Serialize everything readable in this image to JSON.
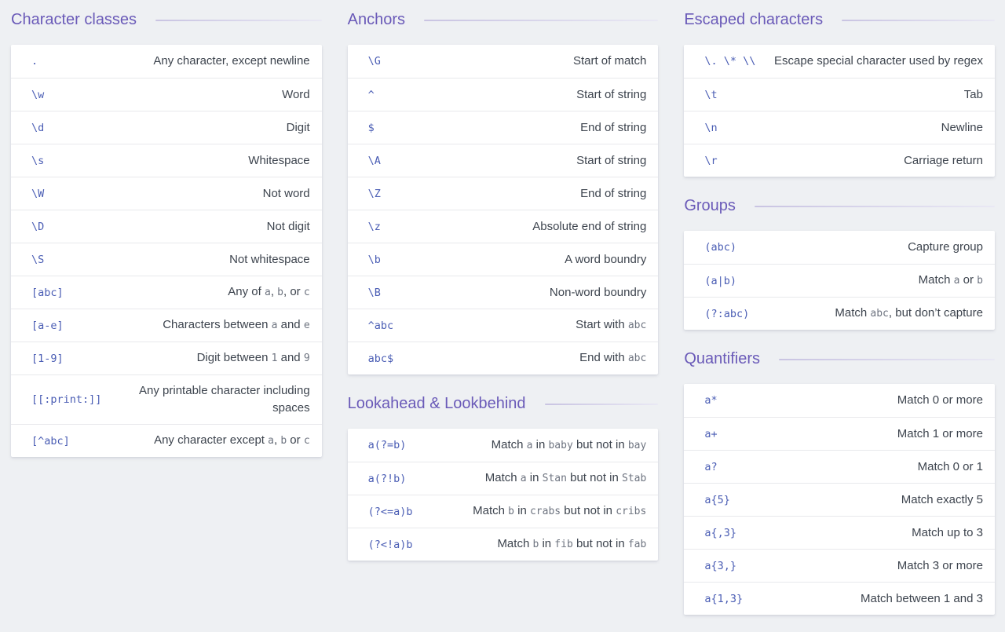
{
  "theme": {
    "page_bg": "#eef0f3",
    "card_bg": "#ffffff",
    "heading_color": "#6a5ab8",
    "rule_color_left": "#c9c4e2",
    "rule_color_right": "#e9e8f4",
    "code_color": "#4a5db4",
    "text_color": "#3d444e",
    "inline_code_color": "#6e7480",
    "divider_color": "#e8e9ec"
  },
  "columns": [
    {
      "sections": [
        {
          "title": "Character classes",
          "rows": [
            {
              "code": ".",
              "desc": [
                {
                  "t": "Any character, except newline"
                }
              ]
            },
            {
              "code": "\\w",
              "desc": [
                {
                  "t": "Word"
                }
              ]
            },
            {
              "code": "\\d",
              "desc": [
                {
                  "t": "Digit"
                }
              ]
            },
            {
              "code": "\\s",
              "desc": [
                {
                  "t": "Whitespace"
                }
              ]
            },
            {
              "code": "\\W",
              "desc": [
                {
                  "t": "Not word"
                }
              ]
            },
            {
              "code": "\\D",
              "desc": [
                {
                  "t": "Not digit"
                }
              ]
            },
            {
              "code": "\\S",
              "desc": [
                {
                  "t": "Not whitespace"
                }
              ]
            },
            {
              "code": "[abc]",
              "desc": [
                {
                  "t": "Any of "
                },
                {
                  "c": "a"
                },
                {
                  "t": ", "
                },
                {
                  "c": "b"
                },
                {
                  "t": ", or "
                },
                {
                  "c": "c"
                }
              ]
            },
            {
              "code": "[a-e]",
              "desc": [
                {
                  "t": "Characters between "
                },
                {
                  "c": "a"
                },
                {
                  "t": " and "
                },
                {
                  "c": "e"
                }
              ]
            },
            {
              "code": "[1-9]",
              "desc": [
                {
                  "t": "Digit between "
                },
                {
                  "c": "1"
                },
                {
                  "t": " and "
                },
                {
                  "c": "9"
                }
              ]
            },
            {
              "code": "[[:print:]]",
              "desc": [
                {
                  "t": "Any printable character including spaces"
                }
              ]
            },
            {
              "code": "[^abc]",
              "desc": [
                {
                  "t": "Any character except "
                },
                {
                  "c": "a"
                },
                {
                  "t": ", "
                },
                {
                  "c": "b"
                },
                {
                  "t": " or "
                },
                {
                  "c": "c"
                }
              ]
            }
          ]
        }
      ]
    },
    {
      "sections": [
        {
          "title": "Anchors",
          "rows": [
            {
              "code": "\\G",
              "desc": [
                {
                  "t": "Start of match"
                }
              ]
            },
            {
              "code": "^",
              "desc": [
                {
                  "t": "Start of string"
                }
              ]
            },
            {
              "code": "$",
              "desc": [
                {
                  "t": "End of string"
                }
              ]
            },
            {
              "code": "\\A",
              "desc": [
                {
                  "t": "Start of string"
                }
              ]
            },
            {
              "code": "\\Z",
              "desc": [
                {
                  "t": "End of string"
                }
              ]
            },
            {
              "code": "\\z",
              "desc": [
                {
                  "t": "Absolute end of string"
                }
              ]
            },
            {
              "code": "\\b",
              "desc": [
                {
                  "t": "A word boundry"
                }
              ]
            },
            {
              "code": "\\B",
              "desc": [
                {
                  "t": "Non-word boundry"
                }
              ]
            },
            {
              "code": "^abc",
              "desc": [
                {
                  "t": "Start with "
                },
                {
                  "c": "abc"
                }
              ]
            },
            {
              "code": "abc$",
              "desc": [
                {
                  "t": "End with "
                },
                {
                  "c": "abc"
                }
              ]
            }
          ]
        },
        {
          "title": "Lookahead & Lookbehind",
          "rows": [
            {
              "code": "a(?=b)",
              "desc": [
                {
                  "t": "Match "
                },
                {
                  "c": "a"
                },
                {
                  "t": " in "
                },
                {
                  "c": "baby"
                },
                {
                  "t": " but not in "
                },
                {
                  "c": "bay"
                }
              ]
            },
            {
              "code": "a(?!b)",
              "desc": [
                {
                  "t": "Match "
                },
                {
                  "c": "a"
                },
                {
                  "t": " in "
                },
                {
                  "c": "Stan"
                },
                {
                  "t": " but not in "
                },
                {
                  "c": "Stab"
                }
              ]
            },
            {
              "code": "(?<=a)b",
              "desc": [
                {
                  "t": "Match "
                },
                {
                  "c": "b"
                },
                {
                  "t": " in "
                },
                {
                  "c": "crabs"
                },
                {
                  "t": " but not in "
                },
                {
                  "c": "cribs"
                }
              ]
            },
            {
              "code": "(?<!a)b",
              "desc": [
                {
                  "t": "Match "
                },
                {
                  "c": "b"
                },
                {
                  "t": " in "
                },
                {
                  "c": "fib"
                },
                {
                  "t": " but not in "
                },
                {
                  "c": "fab"
                }
              ]
            }
          ]
        }
      ]
    },
    {
      "sections": [
        {
          "title": "Escaped characters",
          "rows": [
            {
              "code": "\\. \\* \\\\",
              "desc": [
                {
                  "t": "Escape special character used by regex"
                }
              ]
            },
            {
              "code": "\\t",
              "desc": [
                {
                  "t": "Tab"
                }
              ]
            },
            {
              "code": "\\n",
              "desc": [
                {
                  "t": "Newline"
                }
              ]
            },
            {
              "code": "\\r",
              "desc": [
                {
                  "t": "Carriage return"
                }
              ]
            }
          ]
        },
        {
          "title": "Groups",
          "rows": [
            {
              "code": "(abc)",
              "desc": [
                {
                  "t": "Capture group"
                }
              ]
            },
            {
              "code": "(a|b)",
              "desc": [
                {
                  "t": "Match "
                },
                {
                  "c": "a"
                },
                {
                  "t": " or "
                },
                {
                  "c": "b"
                }
              ]
            },
            {
              "code": "(?:abc)",
              "desc": [
                {
                  "t": "Match "
                },
                {
                  "c": "abc"
                },
                {
                  "t": ", but don’t capture"
                }
              ]
            }
          ]
        },
        {
          "title": "Quantifiers",
          "rows": [
            {
              "code": "a*",
              "desc": [
                {
                  "t": "Match 0 or more"
                }
              ]
            },
            {
              "code": "a+",
              "desc": [
                {
                  "t": "Match 1 or more"
                }
              ]
            },
            {
              "code": "a?",
              "desc": [
                {
                  "t": "Match 0 or 1"
                }
              ]
            },
            {
              "code": "a{5}",
              "desc": [
                {
                  "t": "Match exactly 5"
                }
              ]
            },
            {
              "code": "a{,3}",
              "desc": [
                {
                  "t": "Match up to 3"
                }
              ]
            },
            {
              "code": "a{3,}",
              "desc": [
                {
                  "t": "Match 3 or more"
                }
              ]
            },
            {
              "code": "a{1,3}",
              "desc": [
                {
                  "t": "Match between 1 and 3"
                }
              ]
            }
          ]
        }
      ]
    }
  ]
}
